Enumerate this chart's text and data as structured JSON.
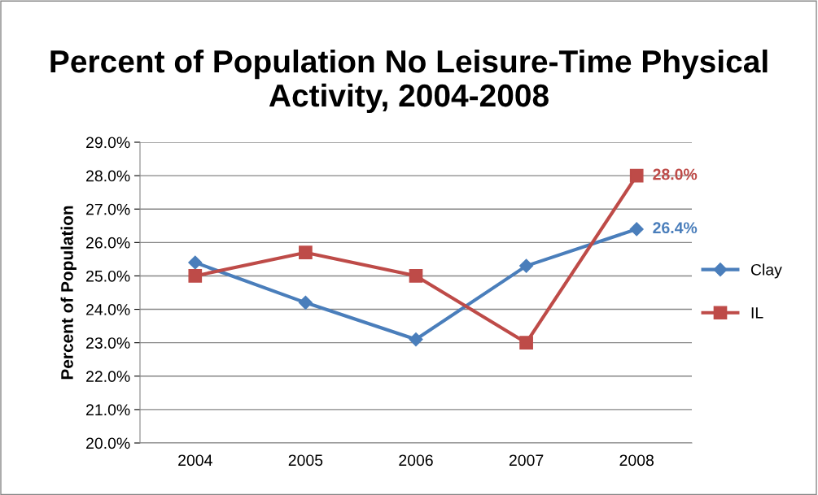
{
  "chart_data": {
    "type": "line",
    "title": "Percent of Population No Leisure-Time Physical Activity, 2004-2008",
    "ylabel": "Percent of Population",
    "categories": [
      "2004",
      "2005",
      "2006",
      "2007",
      "2008"
    ],
    "series": [
      {
        "name": "Clay",
        "color": "#4a7ebb",
        "marker": "diamond",
        "values": [
          25.4,
          24.2,
          23.1,
          25.3,
          26.4
        ],
        "value_labels": [
          null,
          null,
          null,
          null,
          "26.4%"
        ]
      },
      {
        "name": "IL",
        "color": "#be4b48",
        "marker": "square",
        "values": [
          25.0,
          25.7,
          25.0,
          23.0,
          28.0
        ],
        "value_labels": [
          null,
          null,
          null,
          null,
          "28.0%"
        ]
      }
    ],
    "ylim": [
      20,
      29
    ],
    "yticks": [
      {
        "value": 20,
        "label": "20.0%"
      },
      {
        "value": 21,
        "label": "21.0%"
      },
      {
        "value": 22,
        "label": "22.0%"
      },
      {
        "value": 23,
        "label": "23.0%"
      },
      {
        "value": 24,
        "label": "24.0%"
      },
      {
        "value": 25,
        "label": "25.0%"
      },
      {
        "value": 26,
        "label": "26.0%"
      },
      {
        "value": 27,
        "label": "27.0%"
      },
      {
        "value": 28,
        "label": "28.0%"
      },
      {
        "value": 29,
        "label": "29.0%"
      }
    ],
    "grid": "y",
    "legend": "right",
    "line_style": "solid"
  }
}
